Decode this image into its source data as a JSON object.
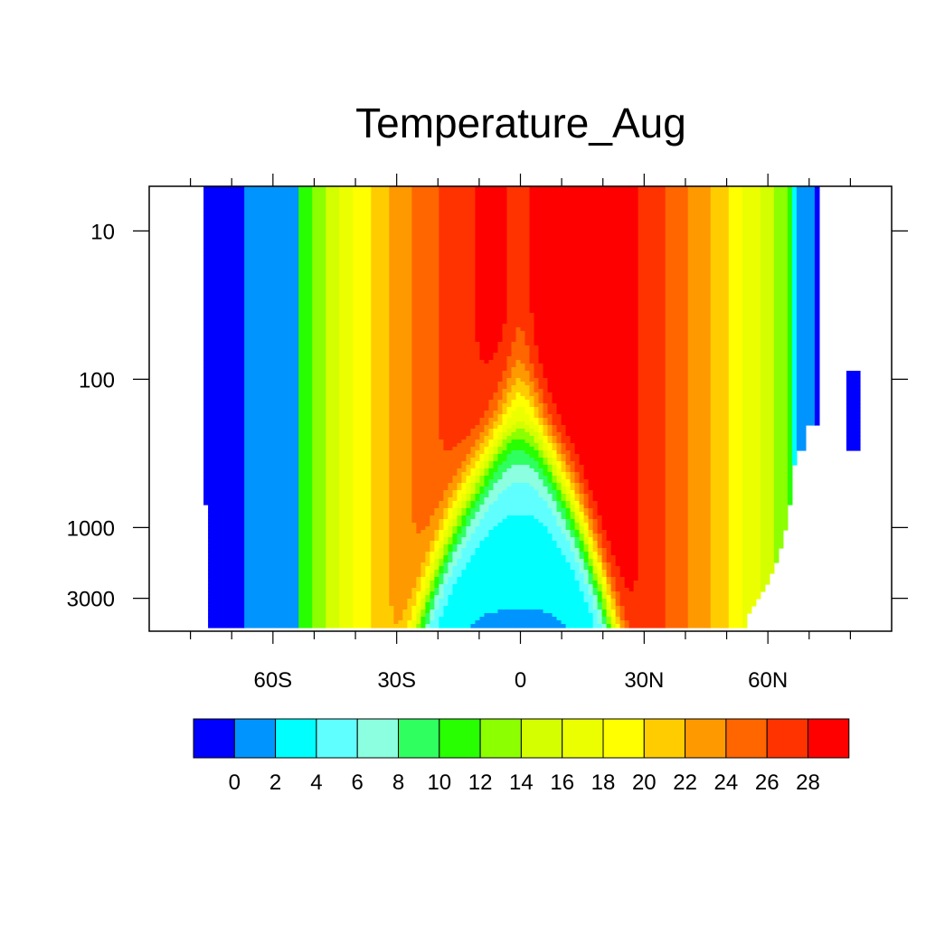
{
  "chart_data": {
    "type": "heatmap",
    "subtype": "filled-contour",
    "title": "Temperature_Aug",
    "xlabel": "",
    "ylabel": "",
    "x_range": [
      -90,
      90
    ],
    "x_ticks": [
      {
        "value": -60,
        "label": "60S"
      },
      {
        "value": -30,
        "label": "30S"
      },
      {
        "value": 0,
        "label": "0"
      },
      {
        "value": 30,
        "label": "30N"
      },
      {
        "value": 60,
        "label": "60N"
      }
    ],
    "y_scale": "log",
    "y_reversed": true,
    "y_range": [
      5,
      5000
    ],
    "y_ticks": [
      10,
      100,
      1000,
      3000
    ],
    "grid": false,
    "colorbar": {
      "placement": "bottom",
      "levels": [
        0,
        2,
        4,
        6,
        8,
        10,
        12,
        14,
        16,
        18,
        20,
        22,
        24,
        26,
        28
      ],
      "colors": [
        "#0000ff",
        "#0094ff",
        "#00ffff",
        "#60ffff",
        "#8cffe0",
        "#30ff60",
        "#28ff00",
        "#8cff00",
        "#d4ff00",
        "#ecff00",
        "#ffff00",
        "#ffcc00",
        "#ff9900",
        "#ff6600",
        "#ff3300",
        "#ff0000"
      ]
    }
  }
}
